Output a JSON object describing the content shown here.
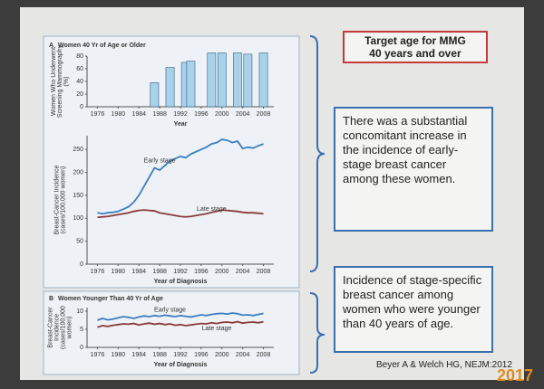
{
  "slide": {
    "target_box": [
      "Target age for MMG",
      "40 years and over"
    ],
    "finding_box": "There was a substantial concomitant increase in the incidence of early-stage breast cancer among these women.",
    "younger_box": "Incidence of stage-specific breast cancer among women who were younger than 40 years of age.",
    "citation": "Beyer A & Welch HG, NEJM:2012",
    "date_stamp": "2017"
  },
  "chart_data": [
    {
      "type": "bar",
      "panel": "A",
      "title": "Women 40 Yr of Age or Older",
      "y_label": [
        "Women Who Underwent",
        "Screening Mammography",
        "(%)"
      ],
      "x_label": "Year",
      "x": [
        1987,
        1990,
        1993,
        1994,
        1998,
        2000,
        2003,
        2005,
        2008
      ],
      "values": [
        38,
        62,
        70,
        72,
        85,
        85,
        85,
        83,
        85
      ],
      "color": "#a9d2ea",
      "xlim": [
        1974,
        2010
      ],
      "xticks": [
        1976,
        1980,
        1984,
        1988,
        1992,
        1996,
        2000,
        2004,
        2008
      ],
      "ylim": [
        0,
        80
      ],
      "yticks": [
        0,
        20,
        40,
        60,
        80
      ]
    },
    {
      "type": "line",
      "y_label": [
        "Breast-Cancer Incidence",
        "(cases/100,000 women)"
      ],
      "x_label": "Year of Diagnosis",
      "x": [
        1976,
        1977,
        1978,
        1979,
        1980,
        1981,
        1982,
        1983,
        1984,
        1985,
        1986,
        1987,
        1988,
        1989,
        1990,
        1991,
        1992,
        1993,
        1994,
        1995,
        1996,
        1997,
        1998,
        1999,
        2000,
        2001,
        2002,
        2003,
        2004,
        2005,
        2006,
        2007,
        2008
      ],
      "series": [
        {
          "name": "Early stage",
          "color": "#3a7fc4",
          "values": [
            112,
            110,
            112,
            113,
            115,
            120,
            125,
            135,
            150,
            170,
            190,
            210,
            205,
            215,
            225,
            230,
            235,
            232,
            240,
            245,
            250,
            255,
            262,
            265,
            272,
            270,
            265,
            268,
            252,
            255,
            253,
            258,
            262
          ]
        },
        {
          "name": "Late stage",
          "color": "#8b3a3a",
          "values": [
            102,
            103,
            104,
            106,
            108,
            110,
            112,
            115,
            117,
            118,
            117,
            116,
            112,
            110,
            108,
            106,
            104,
            103,
            104,
            106,
            108,
            110,
            113,
            115,
            118,
            117,
            116,
            115,
            113,
            112,
            112,
            111,
            110
          ]
        }
      ],
      "xlim": [
        1974,
        2010
      ],
      "xticks": [
        1976,
        1980,
        1984,
        1988,
        1992,
        1996,
        2000,
        2004,
        2008
      ],
      "ylim": [
        0,
        280
      ],
      "yticks": [
        0,
        50,
        100,
        150,
        200,
        250
      ]
    },
    {
      "type": "line",
      "panel": "B",
      "title": "Women Younger Than 40 Yr of Age",
      "y_label": [
        "Breast-Cancer",
        "Incidence",
        "(cases/100,000",
        "women)"
      ],
      "x_label": "Year of Diagnosis",
      "x": [
        1976,
        1977,
        1978,
        1979,
        1980,
        1981,
        1982,
        1983,
        1984,
        1985,
        1986,
        1987,
        1988,
        1989,
        1990,
        1991,
        1992,
        1993,
        1994,
        1995,
        1996,
        1997,
        1998,
        1999,
        2000,
        2001,
        2002,
        2003,
        2004,
        2005,
        2006,
        2007,
        2008
      ],
      "series": [
        {
          "name": "Early stage",
          "color": "#3a7fc4",
          "values": [
            7.5,
            8,
            7.6,
            7.8,
            8.2,
            8.5,
            8.3,
            8,
            8.4,
            8.7,
            8.5,
            8.8,
            8.6,
            8.9,
            8.7,
            8.5,
            8.8,
            8.6,
            8.4,
            8.7,
            9,
            8.8,
            9.1,
            9.3,
            9.4,
            9.2,
            9.5,
            9.3,
            8.9,
            9,
            8.8,
            9.1,
            9.4
          ]
        },
        {
          "name": "Late stage",
          "color": "#8b3a3a",
          "values": [
            5.6,
            6,
            5.8,
            6.1,
            6.3,
            6.5,
            6.4,
            6.6,
            6.2,
            6.5,
            6.7,
            6.4,
            6.6,
            6.3,
            6.5,
            6.1,
            6.3,
            6,
            6.2,
            6.4,
            6.6,
            6.5,
            6.8,
            6.6,
            6.9,
            7,
            6.8,
            7.1,
            6.7,
            6.9,
            7,
            6.8,
            7.1
          ]
        }
      ],
      "xlim": [
        1974,
        2010
      ],
      "xticks": [
        1976,
        1980,
        1984,
        1988,
        1992,
        1996,
        2000,
        2004,
        2008
      ],
      "ylim": [
        0,
        11
      ],
      "yticks": [
        0,
        5,
        10
      ]
    }
  ]
}
